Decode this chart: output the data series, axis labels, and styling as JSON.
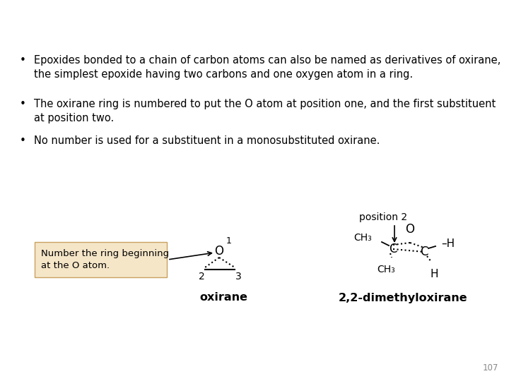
{
  "background_color": "#ffffff",
  "bullet_points": [
    "Epoxides bonded to a chain of carbon atoms can also be named as derivatives of oxirane,\nthe simplest epoxide having two carbons and one oxygen atom in a ring.",
    "The oxirane ring is numbered to put the O atom at position one, and the first substituent\nat position two.",
    "No number is used for a substituent in a monosubstituted oxirane."
  ],
  "box_text_line1": "Number the ring beginning",
  "box_text_line2": "at the O atom.",
  "box_color": "#f5e6c8",
  "box_edge_color": "#c8a060",
  "label_oxirane": "oxirane",
  "label_22dimethyl": "2,2-dimethyloxirane",
  "label_position2": "position 2",
  "page_number": "107",
  "text_color": "#000000",
  "font_size_bullets": 10.5,
  "font_size_labels": 11.5,
  "font_size_page": 8.5
}
